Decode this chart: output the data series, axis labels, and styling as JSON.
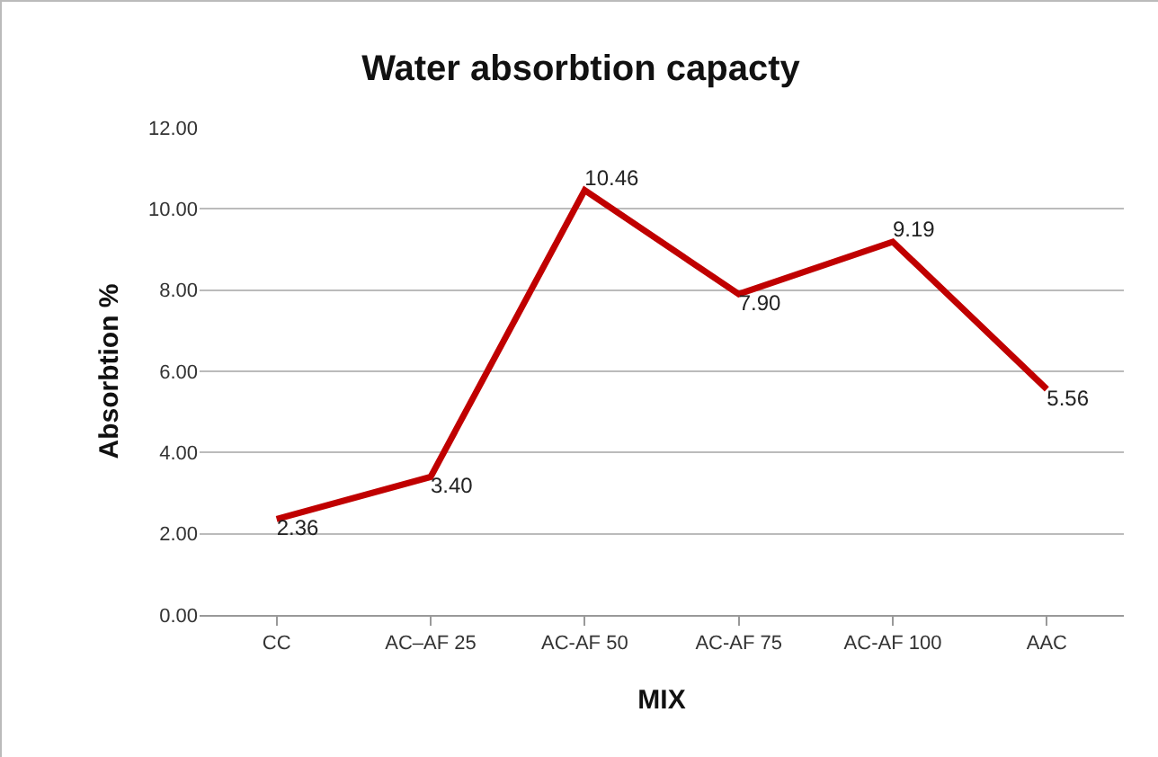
{
  "chart_data": {
    "type": "line",
    "title": "Water absorbtion capacty",
    "xlabel": "MIX",
    "ylabel": "Absorbtion %",
    "categories": [
      "CC",
      "AC–AF 25",
      "AC-AF 50",
      "AC-AF 75",
      "AC-AF 100",
      "AAC"
    ],
    "series": [
      {
        "color": "#c00000",
        "values": [
          2.36,
          3.4,
          10.46,
          7.9,
          9.19,
          5.56
        ],
        "value_labels": [
          "2.36",
          "3.40",
          "10.46",
          "7.90",
          "9.19",
          "5.56"
        ]
      }
    ],
    "ylim": [
      0,
      12
    ],
    "yticks": [
      {
        "value": 0,
        "label": "0.00"
      },
      {
        "value": 2,
        "label": "2.00"
      },
      {
        "value": 4,
        "label": "4.00"
      },
      {
        "value": 6,
        "label": "6.00"
      },
      {
        "value": 8,
        "label": "8.00"
      },
      {
        "value": 10,
        "label": "10.00"
      },
      {
        "value": 12,
        "label": "12.00"
      }
    ],
    "grid": "y",
    "marker": "none",
    "line_style": "solid"
  }
}
